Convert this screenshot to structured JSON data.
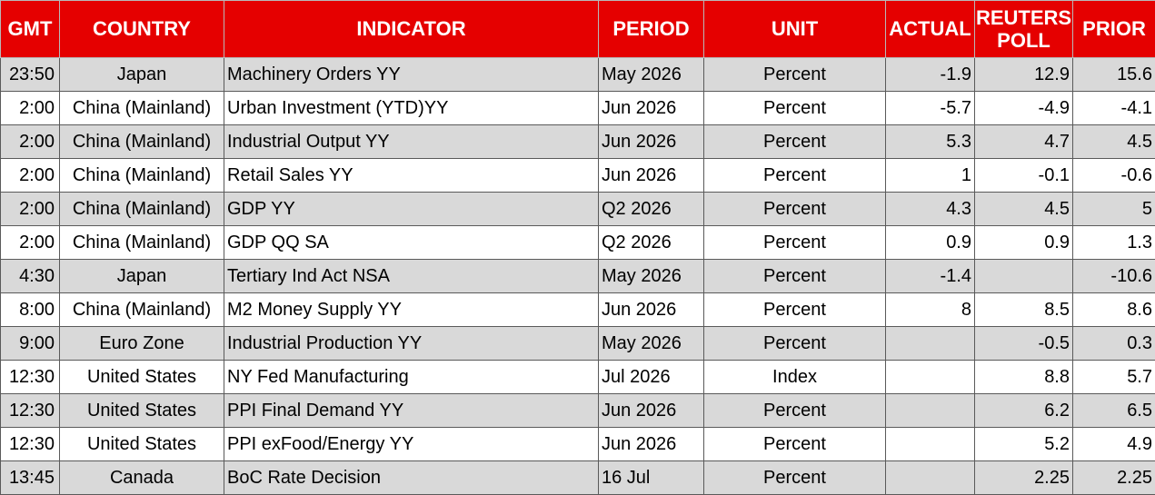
{
  "headers": {
    "gmt": "GMT",
    "country": "COUNTRY",
    "indicator": "INDICATOR",
    "period": "PERIOD",
    "unit": "UNIT",
    "actual": "ACTUAL",
    "poll_line1": "REUTERS",
    "poll_line2": "POLL",
    "prior": "PRIOR"
  },
  "colors": {
    "header_bg": "#e50000",
    "header_text": "#ffffff",
    "row_shade": "#d9d9d9",
    "row_plain": "#ffffff"
  },
  "rows": [
    {
      "gmt": "23:50",
      "country": "Japan",
      "indicator": "Machinery Orders YY",
      "period": "May 2026",
      "unit": "Percent",
      "actual": "-1.9",
      "poll": "12.9",
      "prior": "15.6"
    },
    {
      "gmt": "2:00",
      "country": "China (Mainland)",
      "indicator": "Urban Investment (YTD)YY",
      "period": "Jun 2026",
      "unit": "Percent",
      "actual": "-5.7",
      "poll": "-4.9",
      "prior": "-4.1"
    },
    {
      "gmt": "2:00",
      "country": "China (Mainland)",
      "indicator": "Industrial Output YY",
      "period": "Jun 2026",
      "unit": "Percent",
      "actual": "5.3",
      "poll": "4.7",
      "prior": "4.5"
    },
    {
      "gmt": "2:00",
      "country": "China (Mainland)",
      "indicator": "Retail Sales YY",
      "period": "Jun 2026",
      "unit": "Percent",
      "actual": "1",
      "poll": "-0.1",
      "prior": "-0.6"
    },
    {
      "gmt": "2:00",
      "country": "China (Mainland)",
      "indicator": "GDP YY",
      "period": "Q2 2026",
      "unit": "Percent",
      "actual": "4.3",
      "poll": "4.5",
      "prior": "5"
    },
    {
      "gmt": "2:00",
      "country": "China (Mainland)",
      "indicator": "GDP QQ SA",
      "period": "Q2 2026",
      "unit": "Percent",
      "actual": "0.9",
      "poll": "0.9",
      "prior": "1.3"
    },
    {
      "gmt": "4:30",
      "country": "Japan",
      "indicator": "Tertiary Ind Act NSA",
      "period": "May 2026",
      "unit": "Percent",
      "actual": "-1.4",
      "poll": "",
      "prior": "-10.6"
    },
    {
      "gmt": "8:00",
      "country": "China (Mainland)",
      "indicator": "M2 Money Supply YY",
      "period": "Jun 2026",
      "unit": "Percent",
      "actual": "8",
      "poll": "8.5",
      "prior": "8.6"
    },
    {
      "gmt": "9:00",
      "country": "Euro Zone",
      "indicator": "Industrial Production YY",
      "period": "May 2026",
      "unit": "Percent",
      "actual": "",
      "poll": "-0.5",
      "prior": "0.3"
    },
    {
      "gmt": "12:30",
      "country": "United States",
      "indicator": "NY Fed Manufacturing",
      "period": "Jul 2026",
      "unit": "Index",
      "actual": "",
      "poll": "8.8",
      "prior": "5.7"
    },
    {
      "gmt": "12:30",
      "country": "United States",
      "indicator": "PPI Final Demand YY",
      "period": "Jun 2026",
      "unit": "Percent",
      "actual": "",
      "poll": "6.2",
      "prior": "6.5"
    },
    {
      "gmt": "12:30",
      "country": "United States",
      "indicator": "PPI exFood/Energy YY",
      "period": "Jun 2026",
      "unit": "Percent",
      "actual": "",
      "poll": "5.2",
      "prior": "4.9"
    },
    {
      "gmt": "13:45",
      "country": "Canada",
      "indicator": "BoC Rate Decision",
      "period": "16 Jul",
      "unit": "Percent",
      "actual": "",
      "poll": "2.25",
      "prior": "2.25"
    }
  ]
}
